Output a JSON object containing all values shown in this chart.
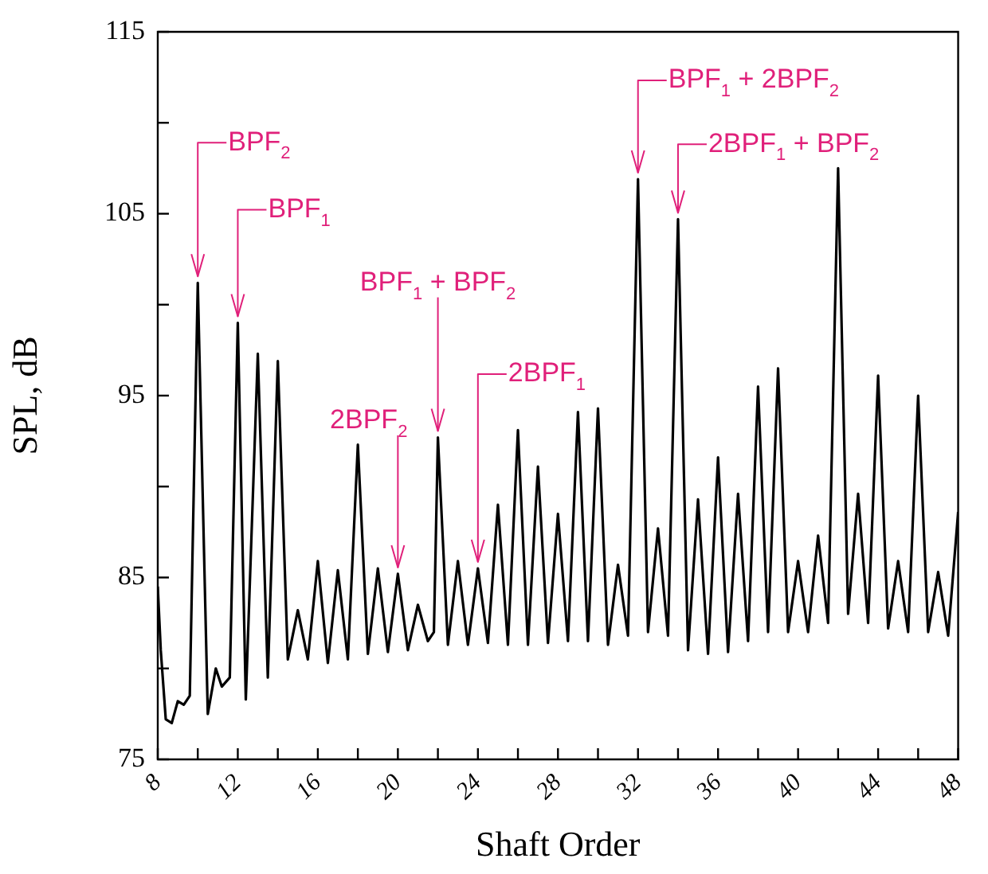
{
  "chart_data": {
    "type": "line",
    "xlabel": "Shaft Order",
    "ylabel": "SPL, dB",
    "color": "#000000",
    "x": [
      8,
      8.15,
      8.4,
      8.7,
      9,
      9.3,
      9.6,
      10,
      10.5,
      10.9,
      11.2,
      11.6,
      12,
      12.4,
      13,
      13.5,
      14,
      14.5,
      15,
      15.5,
      16,
      16.5,
      17,
      17.5,
      18,
      18.5,
      19,
      19.5,
      20,
      20.5,
      21,
      21.5,
      21.8,
      22,
      22.5,
      23,
      23.5,
      24,
      24.5,
      25,
      25.5,
      26,
      26.5,
      27,
      27.5,
      28,
      28.5,
      29,
      29.5,
      30,
      30.5,
      31,
      31.5,
      32,
      32.5,
      33,
      33.5,
      34,
      34.5,
      35,
      35.5,
      36,
      36.5,
      37,
      37.5,
      38,
      38.5,
      39,
      39.5,
      40,
      40.5,
      41,
      41.5,
      42,
      42.5,
      43,
      43.5,
      44,
      44.5,
      45,
      45.5,
      46,
      46.5,
      47,
      47.5,
      48
    ],
    "values": [
      84.5,
      81,
      77.2,
      77,
      78.2,
      78,
      78.5,
      101.2,
      77.5,
      80,
      79,
      79.5,
      99,
      78.3,
      97.3,
      79.5,
      96.9,
      80.5,
      83.2,
      80.5,
      85.9,
      80.3,
      85.4,
      80.5,
      92.3,
      80.8,
      85.5,
      80.9,
      85.2,
      81,
      83.5,
      81.5,
      82,
      92.7,
      81.3,
      85.9,
      81.3,
      85.5,
      81.4,
      89,
      81.3,
      93.1,
      81.3,
      91.1,
      81.4,
      88.5,
      81.5,
      94.1,
      81.5,
      94.3,
      81.3,
      85.7,
      81.8,
      106.9,
      82,
      87.7,
      81.8,
      104.7,
      81,
      89.3,
      80.8,
      91.6,
      80.9,
      89.6,
      81.5,
      95.5,
      82,
      96.5,
      82,
      85.9,
      82,
      87.3,
      82.5,
      107.5,
      83,
      89.6,
      82.5,
      96.1,
      82.2,
      85.9,
      82,
      95,
      82,
      85.3,
      81.8,
      88.6
    ],
    "xlim": [
      8,
      48
    ],
    "xticks": [
      8,
      {
        "value": 10,
        "label": null
      },
      12,
      {
        "value": 14,
        "label": null
      },
      16,
      {
        "value": 18,
        "label": null
      },
      20,
      {
        "value": 22,
        "label": null
      },
      24,
      {
        "value": 26,
        "label": null
      },
      28,
      {
        "value": 30,
        "label": null
      },
      32,
      {
        "value": 34,
        "label": null
      },
      36,
      {
        "value": 38,
        "label": null
      },
      40,
      {
        "value": 42,
        "label": null
      },
      44,
      {
        "value": 46,
        "label": null
      },
      48
    ],
    "ylim": [
      75,
      115
    ],
    "yticks": [
      75,
      {
        "value": 80,
        "label": null
      },
      85,
      {
        "value": 90,
        "label": null
      },
      95,
      {
        "value": 100,
        "label": null
      },
      105,
      {
        "value": 110,
        "label": null
      },
      115
    ],
    "grid": false,
    "legend": false,
    "marker": "none",
    "line_style": "solid",
    "annotations": [
      {
        "text": "BPF$_{2}$",
        "x": 10,
        "y": 101.2
      },
      {
        "text": "BPF$_{1}$",
        "x": 12,
        "y": 99
      },
      {
        "text": "2BPF$_{2}$",
        "x": 20,
        "y": 85.2
      },
      {
        "text": "BPF$_{1}$ + BPF$_{2}$",
        "x": 22,
        "y": 92.7
      },
      {
        "text": "2BPF$_{1}$",
        "x": 24,
        "y": 85.5
      },
      {
        "text": "BPF$_{1}$ + 2BPF$_{2}$",
        "x": 32,
        "y": 106.9
      },
      {
        "text": "2BPF$_{1}$ + BPF$_{2}$",
        "x": 34,
        "y": 104.7
      }
    ]
  }
}
